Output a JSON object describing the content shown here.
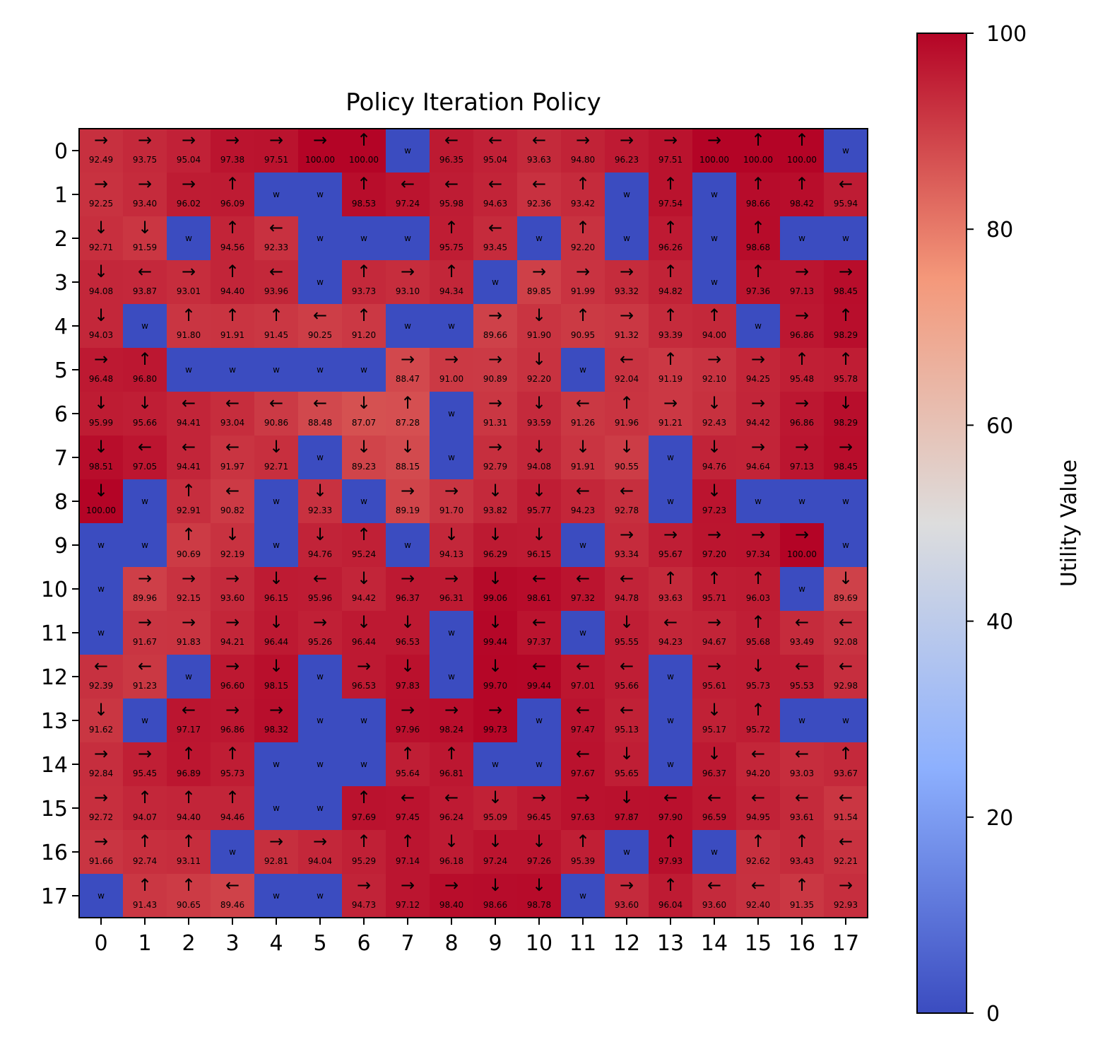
{
  "chart_data": {
    "type": "heatmap",
    "title": "Policy Iteration Policy",
    "x_ticks": [
      "0",
      "1",
      "2",
      "3",
      "4",
      "5",
      "6",
      "7",
      "8",
      "9",
      "10",
      "11",
      "12",
      "13",
      "14",
      "15",
      "16",
      "17"
    ],
    "y_ticks": [
      "0",
      "1",
      "2",
      "3",
      "4",
      "5",
      "6",
      "7",
      "8",
      "9",
      "10",
      "11",
      "12",
      "13",
      "14",
      "15",
      "16",
      "17"
    ],
    "colorbar": {
      "label": "Utility Value",
      "ticks": [
        "0",
        "20",
        "40",
        "60",
        "80",
        "100"
      ],
      "range": [
        0,
        100
      ],
      "colormap": "coolwarm",
      "color_low": "#3b4cc0",
      "color_mid": "#dddddd",
      "color_high": "#b40426"
    },
    "wall_marker": "w",
    "grid": [
      [
        "→92.49",
        "→93.75",
        "→95.04",
        "→97.38",
        "→97.51",
        "→100.00",
        "↑100.00",
        "w",
        "←96.35",
        "←95.04",
        "←93.63",
        "→94.80",
        "→96.23",
        "→97.51",
        "→100.00",
        "↑100.00",
        "↑100.00",
        "w"
      ],
      [
        "→92.25",
        "→93.40",
        "→96.02",
        "↑96.09",
        "w",
        "w",
        "↑98.53",
        "←97.24",
        "←95.98",
        "←94.63",
        "←92.36",
        "↑93.42",
        "w",
        "↑97.54",
        "w",
        "↑98.66",
        "↑98.42",
        "←95.94"
      ],
      [
        "↓92.71",
        "↓91.59",
        "w",
        "↑94.56",
        "←92.33",
        "w",
        "w",
        "w",
        "↑95.75",
        "←93.45",
        "w",
        "↑92.20",
        "w",
        "↑96.26",
        "w",
        "↑98.68",
        "w",
        "w"
      ],
      [
        "↓94.08",
        "←93.87",
        "→93.01",
        "↑94.40",
        "←93.96",
        "w",
        "↑93.73",
        "→93.10",
        "↑94.34",
        "w",
        "→89.85",
        "→91.99",
        "→93.32",
        "↑94.82",
        "w",
        "↑97.36",
        "→97.13",
        "→98.45"
      ],
      [
        "↓94.03",
        "w",
        "↑91.80",
        "↑91.91",
        "↑91.45",
        "←90.25",
        "↑91.20",
        "w",
        "w",
        "→89.66",
        "↓91.90",
        "↑90.95",
        "→91.32",
        "↑93.39",
        "↑94.00",
        "w",
        "→96.86",
        "↑98.29"
      ],
      [
        "→96.48",
        "↑96.80",
        "w",
        "w",
        "w",
        "w",
        "w",
        "→88.47",
        "→91.00",
        "→90.89",
        "↓92.20",
        "w",
        "←92.04",
        "↑91.19",
        "→92.10",
        "→94.25",
        "↑95.48",
        "↑95.78"
      ],
      [
        "↓95.99",
        "↓95.66",
        "←94.41",
        "←93.04",
        "←90.86",
        "←88.48",
        "↓87.07",
        "↑87.28",
        "w",
        "→91.31",
        "↓93.59",
        "←91.26",
        "↑91.96",
        "→91.21",
        "↓92.43",
        "→94.42",
        "→96.86",
        "↓98.29"
      ],
      [
        "↓98.51",
        "←97.05",
        "←94.41",
        "←91.97",
        "↓92.71",
        "w",
        "↓89.23",
        "↓88.15",
        "w",
        "→92.79",
        "↓94.08",
        "↓91.91",
        "↓90.55",
        "w",
        "↓94.76",
        "→94.64",
        "→97.13",
        "→98.45"
      ],
      [
        "↓100.00",
        "w",
        "↑92.91",
        "←90.82",
        "w",
        "↓92.33",
        "w",
        "→89.19",
        "→91.70",
        "↓93.82",
        "↓95.77",
        "←94.23",
        "←92.78",
        "w",
        "↓97.23",
        "w",
        "w",
        "w"
      ],
      [
        "w",
        "w",
        "↑90.69",
        "↓92.19",
        "w",
        "↓94.76",
        "↑95.24",
        "w",
        "↓94.13",
        "↓96.29",
        "↓96.15",
        "w",
        "→93.34",
        "→95.67",
        "→97.20",
        "→97.34",
        "→100.00",
        "w"
      ],
      [
        "w",
        "→89.96",
        "→92.15",
        "→93.60",
        "↓96.15",
        "←95.96",
        "↓94.42",
        "→96.37",
        "→96.31",
        "↓99.06",
        "←98.61",
        "←97.32",
        "←94.78",
        "↑93.63",
        "↑95.71",
        "↑96.03",
        "w",
        "↓89.69"
      ],
      [
        "w",
        "→91.67",
        "→91.83",
        "→94.21",
        "↓96.44",
        "→95.26",
        "↓96.44",
        "↓96.53",
        "w",
        "↓99.44",
        "←97.37",
        "w",
        "↓95.55",
        "←94.23",
        "→94.67",
        "↑95.68",
        "←93.49",
        "←92.08"
      ],
      [
        "←92.39",
        "←91.23",
        "w",
        "→96.60",
        "↓98.15",
        "w",
        "→96.53",
        "↓97.83",
        "w",
        "↓99.70",
        "←99.44",
        "←97.01",
        "←95.66",
        "w",
        "→95.61",
        "↓95.73",
        "←95.53",
        "←92.98"
      ],
      [
        "↓91.62",
        "w",
        "←97.17",
        "→96.86",
        "→98.32",
        "w",
        "w",
        "→97.96",
        "→98.24",
        "→99.73",
        "w",
        "←97.47",
        "←95.13",
        "w",
        "↓95.17",
        "↑95.72",
        "w",
        "w"
      ],
      [
        "→92.84",
        "→95.45",
        "↑96.89",
        "↑95.73",
        "w",
        "w",
        "w",
        "↑95.64",
        "↑96.81",
        "w",
        "w",
        "←97.67",
        "↓95.65",
        "w",
        "↓96.37",
        "←94.20",
        "←93.03",
        "↑93.67"
      ],
      [
        "→92.72",
        "↑94.07",
        "↑94.40",
        "↑94.46",
        "w",
        "w",
        "↑97.69",
        "←97.45",
        "←96.24",
        "↓95.09",
        "→96.45",
        "→97.63",
        "↓97.87",
        "←97.90",
        "←96.59",
        "←94.95",
        "←93.61",
        "←91.54"
      ],
      [
        "→91.66",
        "↑92.74",
        "↑93.11",
        "w",
        "→92.81",
        "→94.04",
        "↑95.29",
        "↑97.14",
        "↓96.18",
        "↓97.24",
        "↓97.26",
        "↑95.39",
        "w",
        "↑97.93",
        "w",
        "↑92.62",
        "↑93.43",
        "←92.21"
      ],
      [
        "w",
        "↑91.43",
        "↑90.65",
        "←89.46",
        "w",
        "w",
        "→94.73",
        "→97.12",
        "→98.40",
        "↓98.66",
        "↓98.78",
        "w",
        "→93.60",
        "↑96.04",
        "←93.60",
        "←92.40",
        "↑91.35",
        "→92.93"
      ]
    ]
  }
}
